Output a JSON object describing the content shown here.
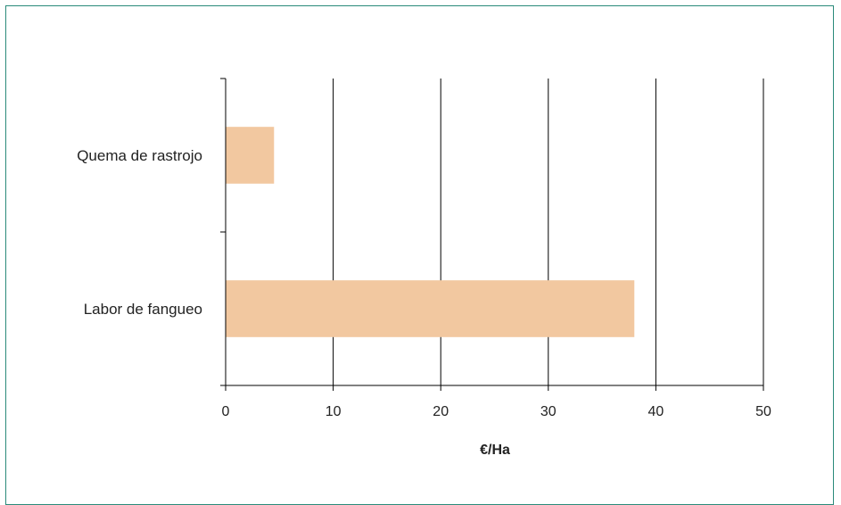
{
  "chart_data": {
    "type": "bar",
    "orientation": "horizontal",
    "categories": [
      "Quema de rastrojo",
      "Labor de fangueo"
    ],
    "values": [
      4.5,
      38
    ],
    "xlabel": "€/Ha",
    "ylabel": "",
    "xlim": [
      0,
      50
    ],
    "xticks": [
      "0",
      "10",
      "20",
      "30",
      "40",
      "50"
    ],
    "grid": "vertical",
    "legend": "none",
    "colors": {
      "bar": "#f2c8a0",
      "grid": "#000000",
      "frame": "#2a8a7a"
    }
  }
}
